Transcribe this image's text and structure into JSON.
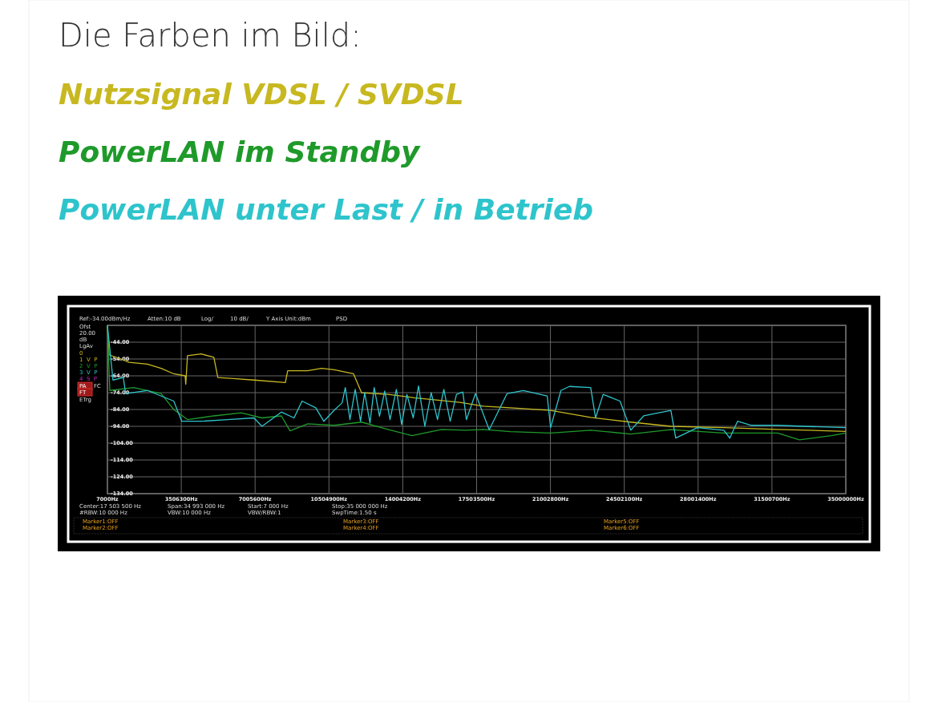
{
  "chart_data": {
    "type": "line",
    "title": "Die Farben im Bild:",
    "legend": "top",
    "grid": true,
    "xlim": [
      7000,
      35000000
    ],
    "xticks": [
      {
        "value": 7000,
        "label": "7000Hz"
      },
      {
        "value": 3506300,
        "label": "3506300Hz"
      },
      {
        "value": 7005600,
        "label": "7005600Hz"
      },
      {
        "value": 10504900,
        "label": "10504900Hz"
      },
      {
        "value": 14004200,
        "label": "14004200Hz"
      },
      {
        "value": 17503500,
        "label": "17503500Hz"
      },
      {
        "value": 21002800,
        "label": "21002800Hz"
      },
      {
        "value": 24502100,
        "label": "24502100Hz"
      },
      {
        "value": 28001400,
        "label": "28001400Hz"
      },
      {
        "value": 31500700,
        "label": "31500700Hz"
      },
      {
        "value": 35000000,
        "label": "35000000Hz"
      }
    ],
    "ylim": [
      -134,
      -34
    ],
    "yticks": [
      {
        "value": -34,
        "label": null
      },
      {
        "value": -44,
        "label": "-44.00"
      },
      {
        "value": -54,
        "label": "-54.00"
      },
      {
        "value": -64,
        "label": "-64.00"
      },
      {
        "value": -74,
        "label": "-74.00"
      },
      {
        "value": -84,
        "label": "-84.00"
      },
      {
        "value": -94,
        "label": "-94.00"
      },
      {
        "value": -104,
        "label": "-104.00"
      },
      {
        "value": -114,
        "label": "-114.00"
      },
      {
        "value": -124,
        "label": "-124.00"
      },
      {
        "value": -134,
        "label": "-134.00"
      }
    ],
    "annotations": [
      "Ref:-34.00dBm/Hz",
      "Atten:10 dB",
      "Log/",
      "10 dB/",
      "Y Axis Unit:dBm",
      "PSD",
      "Ofst",
      "20.00",
      "dB",
      "LgAv",
      "0",
      "1  V  P",
      "2  V  P",
      "3  V  P",
      "4  S  P",
      "PA",
      "FC",
      "FT",
      "ETrg",
      "Center:17 503 500 Hz",
      "Span:34 993 000 Hz",
      "Start:7 000 Hz",
      "Stop:35 000 000 Hz",
      "#RBW:10 000 Hz",
      "VBW:10 000 Hz",
      "VBW/RBW:1",
      "SwpTime:1.50 s",
      "Marker1:OFF",
      "Marker2:OFF",
      "Marker3:OFF",
      "Marker4:OFF",
      "Marker5:OFF",
      "Marker6:OFF"
    ],
    "series": [
      {
        "name": "Nutzsignal VDSL / SVDSL",
        "color": "#c8b820",
        "x": [
          7000,
          80000,
          650000,
          1030000,
          1900000,
          2550000,
          3150000,
          3690000,
          3720000,
          3800000,
          4450000,
          5050000,
          5240000,
          5970000,
          6950000,
          8440000,
          8550000,
          9500000,
          10150000,
          10750000,
          11670000,
          12050000,
          13300000,
          14550000,
          16720000,
          17820000,
          19110000,
          21010000,
          22910000,
          24810000,
          26710000,
          29220000,
          31770000,
          35000000
        ],
        "values": [
          -34,
          -51.5,
          -54,
          -56,
          -57,
          -59.5,
          -62.8,
          -64,
          -69,
          -52,
          -51,
          -53,
          -65,
          -65.6,
          -66.5,
          -68,
          -61,
          -61,
          -59.5,
          -60.4,
          -62.8,
          -74,
          -75,
          -77,
          -79.8,
          -82,
          -83,
          -84.5,
          -88.7,
          -91.5,
          -94,
          -94.8,
          -95.8,
          -97
        ]
      },
      {
        "name": "PowerLAN im Standby",
        "color": "#1f9a2a",
        "x": [
          7000,
          120000,
          1250000,
          1900000,
          2550000,
          3150000,
          3800000,
          5050000,
          6350000,
          7330000,
          8250000,
          8660000,
          9500000,
          10750000,
          12050000,
          13300000,
          14440000,
          15850000,
          16990000,
          17820000,
          19110000,
          21010000,
          22910000,
          24810000,
          26710000,
          29220000,
          31770000,
          32800000,
          34310000,
          35000000
        ],
        "values": [
          -34,
          -72.7,
          -71,
          -72.7,
          -74.5,
          -84,
          -90,
          -87.8,
          -86,
          -89,
          -87.8,
          -96.7,
          -92.5,
          -93.4,
          -91.5,
          -95.8,
          -99.5,
          -95.8,
          -96.3,
          -95.8,
          -97.2,
          -98,
          -96.3,
          -98.6,
          -96,
          -98,
          -98,
          -102,
          -99.5,
          -98
        ]
      },
      {
        "name": "PowerLAN unter Last / in Betrieb",
        "color": "#2ec4cc",
        "x": [
          7000,
          270000,
          760000,
          870000,
          1900000,
          3150000,
          3530000,
          4450000,
          5700000,
          6950000,
          7330000,
          8250000,
          8850000,
          9230000,
          9880000,
          10260000,
          10750000,
          11130000,
          11280000,
          11500000,
          11750000,
          12000000,
          12200000,
          12450000,
          12650000,
          12900000,
          13150000,
          13400000,
          13700000,
          13950000,
          14200000,
          14500000,
          14750000,
          15050000,
          15350000,
          15650000,
          15950000,
          16250000,
          16550000,
          16850000,
          17020000,
          17450000,
          18100000,
          18950000,
          19720000,
          20850000,
          21010000,
          21500000,
          21900000,
          22910000,
          23140000,
          23500000,
          24300000,
          24810000,
          25420000,
          26710000,
          26940000,
          27970000,
          29220000,
          29500000,
          29870000,
          30500000,
          31770000,
          33030000,
          35000000
        ],
        "values": [
          -34,
          -66.5,
          -65,
          -74.5,
          -72.7,
          -79,
          -91,
          -91,
          -90,
          -89,
          -94,
          -85.5,
          -89,
          -79,
          -83,
          -91,
          -84.5,
          -80,
          -71,
          -90,
          -72,
          -91,
          -74,
          -92,
          -71,
          -88,
          -73,
          -90,
          -72,
          -93,
          -75,
          -89,
          -70,
          -94,
          -74,
          -90,
          -72,
          -91,
          -75,
          -73.6,
          -90,
          -74.5,
          -96,
          -74.5,
          -72.7,
          -76,
          -94.8,
          -72.7,
          -70.3,
          -71,
          -89,
          -75,
          -79,
          -96.3,
          -87.8,
          -84.5,
          -101,
          -94.8,
          -96.3,
          -101,
          -91,
          -93.4,
          -93.4,
          -94,
          -94.8
        ]
      }
    ]
  }
}
